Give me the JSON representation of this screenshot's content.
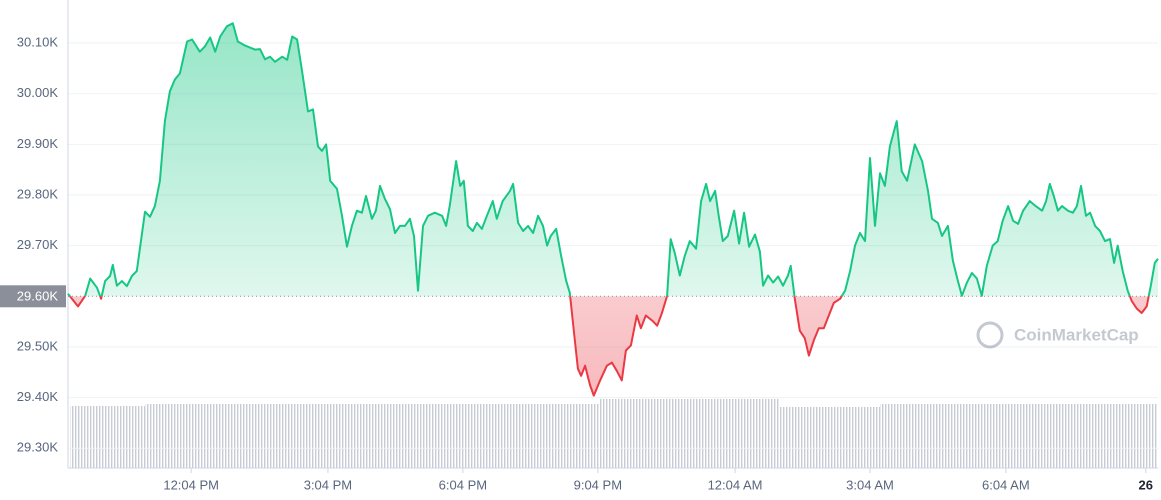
{
  "chart_data": {
    "type": "line",
    "color": "#16c784",
    "down_color": "#ea3943",
    "grid": true,
    "baseline": {
      "value": 29600,
      "label": "29.60K"
    },
    "watermark": "CoinMarketCap",
    "xlim": [
      0,
      24.07
    ],
    "ylim": [
      29261,
      30185
    ],
    "xticks": [
      {
        "value": 2.72,
        "label": "12:04 PM"
      },
      {
        "value": 5.74,
        "label": "3:04 PM"
      },
      {
        "value": 8.72,
        "label": "6:04 PM"
      },
      {
        "value": 11.7,
        "label": "9:04 PM"
      },
      {
        "value": 14.73,
        "label": "12:04 AM"
      },
      {
        "value": 17.71,
        "label": "3:04 AM"
      },
      {
        "value": 20.71,
        "label": "6:04 AM"
      },
      {
        "value": 23.8,
        "label": "26"
      }
    ],
    "yticks": [
      {
        "value": 29300,
        "label": "29.30K"
      },
      {
        "value": 29400,
        "label": "29.40K"
      },
      {
        "value": 29500,
        "label": "29.50K"
      },
      {
        "value": 29700,
        "label": "29.70K"
      },
      {
        "value": 29800,
        "label": "29.80K"
      },
      {
        "value": 29900,
        "label": "29.90K"
      },
      {
        "value": 30000,
        "label": "30.00K"
      },
      {
        "value": 30100,
        "label": "30.10K"
      }
    ],
    "x": [
      0,
      0.22,
      0.38,
      0.49,
      0.64,
      0.73,
      0.82,
      0.93,
      0.99,
      1.08,
      1.19,
      1.3,
      1.41,
      1.52,
      1.7,
      1.81,
      1.92,
      2.03,
      2.14,
      2.25,
      2.36,
      2.47,
      2.63,
      2.74,
      2.91,
      3.02,
      3.14,
      3.25,
      3.36,
      3.51,
      3.64,
      3.75,
      3.91,
      4.13,
      4.24,
      4.35,
      4.46,
      4.57,
      4.73,
      4.84,
      4.95,
      5.06,
      5.17,
      5.3,
      5.41,
      5.52,
      5.61,
      5.7,
      5.79,
      5.94,
      6.05,
      6.16,
      6.27,
      6.38,
      6.49,
      6.58,
      6.71,
      6.8,
      6.89,
      7,
      7.11,
      7.22,
      7.33,
      7.44,
      7.55,
      7.64,
      7.73,
      7.84,
      7.95,
      8.1,
      8.26,
      8.35,
      8.43,
      8.57,
      8.66,
      8.74,
      8.83,
      8.94,
      9.03,
      9.14,
      9.25,
      9.38,
      9.47,
      9.6,
      9.76,
      9.83,
      9.94,
      10.05,
      10.16,
      10.27,
      10.38,
      10.49,
      10.58,
      10.66,
      10.78,
      10.89,
      11,
      11.08,
      11.17,
      11.26,
      11.33,
      11.42,
      11.53,
      11.61,
      11.75,
      11.9,
      12.01,
      12.12,
      12.23,
      12.32,
      12.43,
      12.56,
      12.65,
      12.76,
      12.9,
      13.01,
      13.12,
      13.23,
      13.31,
      13.4,
      13.51,
      13.62,
      13.73,
      13.87,
      13.98,
      14.09,
      14.18,
      14.29,
      14.37,
      14.46,
      14.57,
      14.71,
      14.82,
      14.93,
      15.04,
      15.17,
      15.28,
      15.35,
      15.46,
      15.57,
      15.68,
      15.79,
      15.9,
      15.96,
      16.05,
      16.16,
      16.27,
      16.36,
      16.47,
      16.58,
      16.69,
      16.8,
      16.91,
      17.05,
      17.16,
      17.27,
      17.38,
      17.49,
      17.6,
      17.71,
      17.82,
      17.93,
      18.04,
      18.15,
      18.3,
      18.41,
      18.53,
      18.7,
      18.86,
      18.99,
      19.08,
      19.21,
      19.3,
      19.43,
      19.54,
      19.65,
      19.74,
      19.85,
      19.96,
      20.07,
      20.18,
      20.29,
      20.42,
      20.53,
      20.64,
      20.76,
      20.87,
      20.98,
      21.09,
      21.24,
      21.37,
      21.51,
      21.6,
      21.68,
      21.77,
      21.86,
      21.95,
      22.08,
      22.19,
      22.28,
      22.37,
      22.48,
      22.57,
      22.68,
      22.79,
      22.9,
      23.01,
      23.1,
      23.18,
      23.29,
      23.4,
      23.49,
      23.6,
      23.71,
      23.82,
      23.91,
      24,
      24.07
    ],
    "values": [
      29605,
      29580,
      29601,
      29635,
      29617,
      29595,
      29630,
      29640,
      29662,
      29621,
      29630,
      29620,
      29640,
      29650,
      29767,
      29757,
      29778,
      29828,
      29946,
      30005,
      30028,
      30040,
      30103,
      30107,
      30083,
      30093,
      30111,
      30083,
      30113,
      30133,
      30139,
      30103,
      30095,
      30087,
      30088,
      30068,
      30073,
      30063,
      30073,
      30067,
      30113,
      30107,
      30044,
      29965,
      29969,
      29896,
      29887,
      29900,
      29828,
      29812,
      29759,
      29698,
      29739,
      29769,
      29765,
      29798,
      29753,
      29769,
      29818,
      29792,
      29772,
      29725,
      29739,
      29739,
      29753,
      29719,
      29611,
      29739,
      29759,
      29765,
      29759,
      29739,
      29778,
      29867,
      29818,
      29828,
      29739,
      29729,
      29745,
      29733,
      29759,
      29788,
      29753,
      29788,
      29808,
      29822,
      29745,
      29729,
      29739,
      29725,
      29759,
      29739,
      29700,
      29719,
      29733,
      29680,
      29631,
      29607,
      29532,
      29457,
      29443,
      29463,
      29424,
      29404,
      29434,
      29463,
      29469,
      29453,
      29434,
      29493,
      29503,
      29562,
      29537,
      29562,
      29552,
      29542,
      29568,
      29601,
      29713,
      29685,
      29641,
      29680,
      29709,
      29694,
      29788,
      29822,
      29788,
      29808,
      29759,
      29709,
      29719,
      29769,
      29704,
      29765,
      29698,
      29722,
      29688,
      29621,
      29641,
      29627,
      29639,
      29621,
      29641,
      29660,
      29595,
      29532,
      29517,
      29483,
      29513,
      29537,
      29537,
      29562,
      29587,
      29595,
      29611,
      29650,
      29700,
      29725,
      29709,
      29873,
      29739,
      29843,
      29818,
      29896,
      29946,
      29847,
      29828,
      29900,
      29867,
      29808,
      29753,
      29745,
      29719,
      29739,
      29670,
      29631,
      29601,
      29627,
      29646,
      29635,
      29601,
      29660,
      29700,
      29709,
      29749,
      29778,
      29749,
      29743,
      29769,
      29788,
      29778,
      29769,
      29788,
      29822,
      29798,
      29769,
      29778,
      29769,
      29765,
      29778,
      29818,
      29759,
      29765,
      29739,
      29729,
      29709,
      29713,
      29666,
      29700,
      29650,
      29611,
      29591,
      29576,
      29567,
      29580,
      29621,
      29666,
      29674
    ]
  }
}
